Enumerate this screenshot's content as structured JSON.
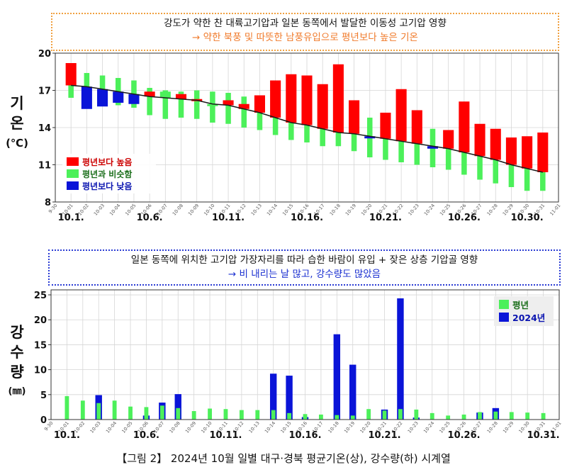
{
  "caption": "【그림 2】 2024년 10월 일별 대구·경북 평균기온(상), 강수량(하) 시계열",
  "box_top": {
    "line1": "강도가 약한 찬 대륙고기압과 일본 동쪽에서 발달한 이동성 고기압 영향",
    "line2": "→ 약한 북풍 및 따뜻한 남풍유입으로 평년보다 높은 기온"
  },
  "box_bottom": {
    "line1": "일본 동쪽에 위치한 고기압 가장자리를 따라 습한 바람이 유입 + 잦은 상층 기압골 영향",
    "line2": "→ 비 내리는 날 많고, 강수량도 많았음"
  },
  "ylabel_top": {
    "text": "기온",
    "unit": "(℃)"
  },
  "ylabel_bottom": {
    "text": "강수량",
    "unit": "(㎜)"
  },
  "colors": {
    "above": "#ff0000",
    "similar": "#4cf05a",
    "below": "#0a14d8",
    "normal_precip": "#4cf05a",
    "precip_2024": "#0a14d8",
    "line": "#1a1a1a",
    "grid": "#d6d6d6"
  },
  "chart_data": [
    {
      "type": "bar",
      "ylim": [
        8,
        20
      ],
      "yticks": [
        8,
        11,
        14,
        17,
        20
      ],
      "grid": true,
      "legend_position": "bottom-left",
      "legend": [
        "평년보다 높음",
        "평년과 비슷함",
        "평년보다 낮음"
      ],
      "x_tick_labels": [
        "9-30",
        "10-01",
        "10-02",
        "10-03",
        "10-04",
        "10-05",
        "10-06",
        "10-07",
        "10-08",
        "10-09",
        "10-10",
        "10-11",
        "10-12",
        "10-13",
        "10-14",
        "10-15",
        "10-16",
        "10-17",
        "10-18",
        "10-19",
        "10-20",
        "10-21",
        "10-22",
        "10-23",
        "10-24",
        "10-25",
        "10-26",
        "10-27",
        "10-28",
        "10-29",
        "10-30",
        "10-31",
        "11-01"
      ],
      "major_labels": [
        {
          "label": "10.1.",
          "day": 1
        },
        {
          "label": "10.6.",
          "day": 6
        },
        {
          "label": "10.11.",
          "day": 11
        },
        {
          "label": "10.16.",
          "day": 16
        },
        {
          "label": "10.21.",
          "day": 21
        },
        {
          "label": "10.26.",
          "day": 26
        },
        {
          "label": "10.30.",
          "day": 30
        }
      ],
      "days": [
        1,
        2,
        3,
        4,
        5,
        6,
        7,
        8,
        9,
        10,
        11,
        12,
        13,
        14,
        15,
        16,
        17,
        18,
        19,
        20,
        21,
        22,
        23,
        24,
        25,
        26,
        27,
        28,
        29,
        30,
        31
      ],
      "observed": [
        19.2,
        15.5,
        15.7,
        16.0,
        15.9,
        16.9,
        16.9,
        16.7,
        16.3,
        15.9,
        16.2,
        15.9,
        16.6,
        17.8,
        18.3,
        18.2,
        17.5,
        19.1,
        16.2,
        13.3,
        15.2,
        17.1,
        15.4,
        12.3,
        13.8,
        16.1,
        14.3,
        13.9,
        13.2,
        13.3,
        13.6
      ],
      "normal": [
        17.4,
        17.3,
        17.1,
        16.9,
        16.7,
        16.5,
        16.4,
        16.3,
        16.2,
        15.9,
        15.8,
        15.5,
        15.2,
        14.8,
        14.4,
        14.2,
        13.9,
        13.6,
        13.5,
        13.3,
        13.1,
        12.9,
        12.7,
        12.5,
        12.3,
        12.0,
        11.7,
        11.4,
        11.0,
        10.7,
        10.4
      ],
      "category": [
        "above",
        "below",
        "below",
        "below",
        "below",
        "above",
        "similar",
        "above",
        "above",
        "similar",
        "above",
        "above",
        "above",
        "above",
        "above",
        "above",
        "above",
        "above",
        "above",
        "below",
        "above",
        "above",
        "above",
        "below",
        "above",
        "above",
        "above",
        "above",
        "above",
        "above",
        "above"
      ],
      "similar_range": [
        [
          16.4,
          18.5
        ],
        [
          16.2,
          18.4
        ],
        [
          16.0,
          18.2
        ],
        [
          15.8,
          18.0
        ],
        [
          15.6,
          17.8
        ],
        [
          15.0,
          17.2
        ],
        [
          14.7,
          17.0
        ],
        [
          14.8,
          16.9
        ],
        [
          14.7,
          17.0
        ],
        [
          14.4,
          16.9
        ],
        [
          14.3,
          16.8
        ],
        [
          14.0,
          16.5
        ],
        [
          13.8,
          16.3
        ],
        [
          13.4,
          15.6
        ],
        [
          13.0,
          15.3
        ],
        [
          12.8,
          15.1
        ],
        [
          12.5,
          14.9
        ],
        [
          12.5,
          14.6
        ],
        [
          12.1,
          14.5
        ],
        [
          11.6,
          14.8
        ],
        [
          11.4,
          14.5
        ],
        [
          11.2,
          14.3
        ],
        [
          11.0,
          14.2
        ],
        [
          10.8,
          13.9
        ],
        [
          10.6,
          13.8
        ],
        [
          10.2,
          13.3
        ],
        [
          9.8,
          13.0
        ],
        [
          9.5,
          12.6
        ],
        [
          9.2,
          12.3
        ],
        [
          8.9,
          12.1
        ],
        [
          8.9,
          11.9
        ]
      ]
    },
    {
      "type": "bar",
      "ylim": [
        0,
        26
      ],
      "yticks": [
        0,
        5,
        10,
        15,
        20,
        25
      ],
      "grid": true,
      "legend_position": "top-right",
      "legend": [
        "평년",
        "2024년"
      ],
      "x_tick_labels": [
        "9-30",
        "10-01",
        "10-02",
        "10-03",
        "10-04",
        "10-05",
        "10-06",
        "10-07",
        "10-08",
        "10-09",
        "10-10",
        "10-11",
        "10-12",
        "10-13",
        "10-14",
        "10-15",
        "10-16",
        "10-17",
        "10-18",
        "10-19",
        "10-20",
        "10-21",
        "10-22",
        "10-23",
        "10-24",
        "10-25",
        "10-26",
        "10-27",
        "10-28",
        "10-29",
        "10-30",
        "10-31",
        "11-01"
      ],
      "major_labels": [
        {
          "label": "10.1.",
          "day": 1
        },
        {
          "label": "10.6.",
          "day": 6
        },
        {
          "label": "10.11.",
          "day": 11
        },
        {
          "label": "10.16.",
          "day": 16
        },
        {
          "label": "10.21.",
          "day": 21
        },
        {
          "label": "10.26.",
          "day": 26
        },
        {
          "label": "10.31.",
          "day": 31
        }
      ],
      "days": [
        1,
        2,
        3,
        4,
        5,
        6,
        7,
        8,
        9,
        10,
        11,
        12,
        13,
        14,
        15,
        16,
        17,
        18,
        19,
        20,
        21,
        22,
        23,
        24,
        25,
        26,
        27,
        28,
        29,
        30,
        31
      ],
      "series": [
        {
          "name": "평년",
          "values": [
            4.7,
            3.8,
            3.3,
            3.8,
            2.6,
            2.5,
            2.8,
            2.3,
            1.7,
            2.2,
            2.1,
            1.9,
            1.9,
            1.9,
            1.3,
            1.1,
            1.0,
            0.9,
            0.8,
            2.1,
            1.8,
            2.1,
            2.0,
            1.3,
            0.8,
            1.0,
            1.5,
            1.6,
            1.5,
            1.4,
            1.3
          ]
        },
        {
          "name": "2024년",
          "values": [
            0,
            0,
            4.9,
            0,
            0,
            0.8,
            3.4,
            5.1,
            0,
            0,
            0,
            0,
            0,
            9.2,
            8.8,
            0.5,
            0,
            17.1,
            11.0,
            0,
            2.0,
            24.3,
            0.4,
            0,
            0,
            0,
            1.4,
            2.3,
            0,
            0,
            0
          ]
        }
      ]
    }
  ]
}
